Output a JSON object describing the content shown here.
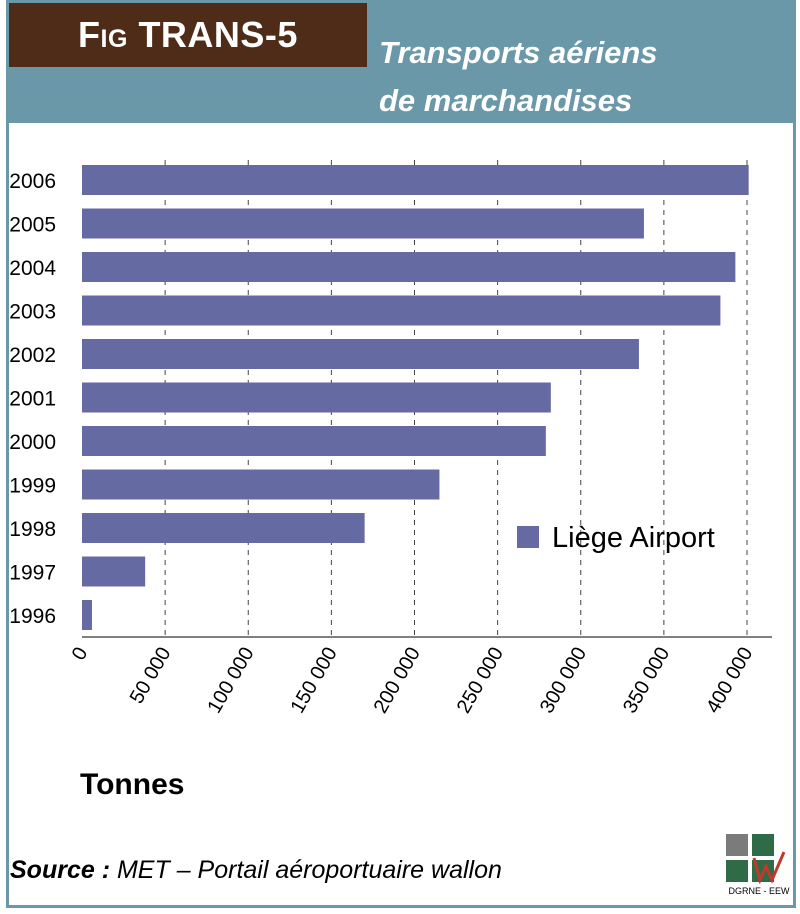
{
  "header": {
    "fig_prefix": "Fig",
    "fig_id": "TRANS-5",
    "title_line1": "Transports aériens",
    "title_line2": "de marchandises"
  },
  "colors": {
    "bar": "#666aa3",
    "header_bg": "#6b98a8",
    "tag_bg": "#4e2c17"
  },
  "chart_data": {
    "type": "bar",
    "orientation": "horizontal",
    "title": "Transports aériens de marchandises",
    "xlabel": "Tonnes",
    "ylabel": "",
    "categories": [
      "2006",
      "2005",
      "2004",
      "2003",
      "2002",
      "2001",
      "2000",
      "1999",
      "1998",
      "1997",
      "1996"
    ],
    "series": [
      {
        "name": "Liège Airport",
        "values": [
          401000,
          338000,
          393000,
          384000,
          335000,
          282000,
          279000,
          215000,
          170000,
          38000,
          6000
        ]
      }
    ],
    "xlim": [
      0,
      400000
    ],
    "xticks": [
      "0",
      "50 000",
      "100 000",
      "150 000",
      "200 000",
      "250 000",
      "300 000",
      "350 000",
      "400 000"
    ],
    "grid": "vertical dashed",
    "legend_position": "right"
  },
  "footer": {
    "source_label": "Source :",
    "source_text": "MET – Portail aéroportuaire wallon",
    "logo_caption": "DGRNE - EEW"
  }
}
